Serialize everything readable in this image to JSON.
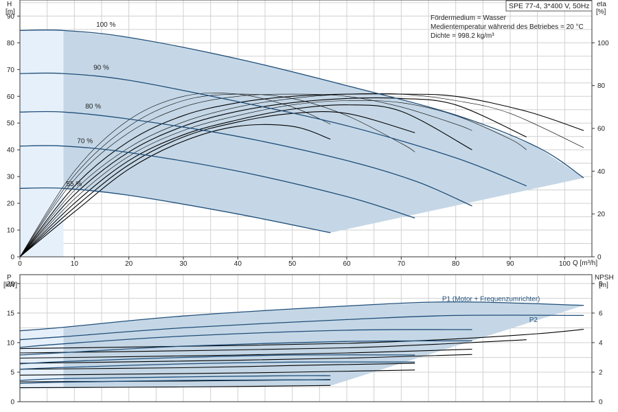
{
  "title_box": "SPE 77-4, 3*400 V, 50Hz",
  "info_lines": [
    "Fördermedium = Wasser",
    "Medientemperatur während des Betriebes = 20 °C",
    "Dichte = 998.2 kg/m³"
  ],
  "colors": {
    "curve": "#1f4e79",
    "fill": "#c5d7e6",
    "fill_light": "#e6f0fa",
    "eff": "#000000",
    "grid": "#d0d0d0"
  },
  "chart_data": [
    {
      "type": "line",
      "name": "head-efficiency",
      "ylabel_left": [
        "H",
        "[m]"
      ],
      "ylabel_right": [
        "eta",
        "[%]"
      ],
      "xlabel": "Q [m³/h]",
      "xlim": [
        0,
        105
      ],
      "ylim": [
        0,
        96
      ],
      "ylim_right": [
        0,
        120
      ],
      "xticks": [
        0,
        10,
        20,
        30,
        40,
        50,
        60,
        70,
        80,
        90,
        100
      ],
      "yticks_left": [
        0,
        10,
        20,
        30,
        40,
        50,
        60,
        70,
        80,
        90
      ],
      "yticks_right": [
        0,
        20,
        40,
        60,
        80,
        100
      ],
      "grid": true,
      "head_curves": [
        {
          "label": "100 %",
          "label_at": [
            14,
            86
          ],
          "points": [
            [
              0,
              84.6
            ],
            [
              8,
              84.6
            ],
            [
              20,
              82
            ],
            [
              40,
              74
            ],
            [
              60,
              64
            ],
            [
              80,
              53
            ],
            [
              95,
              41
            ],
            [
              103.5,
              29.5
            ]
          ]
        },
        {
          "label": "90 %",
          "label_at": [
            13.5,
            70
          ],
          "points": [
            [
              0,
              68.5
            ],
            [
              8,
              68.5
            ],
            [
              20,
              66
            ],
            [
              40,
              58
            ],
            [
              60,
              49
            ],
            [
              80,
              37
            ],
            [
              93,
              26.5
            ]
          ]
        },
        {
          "label": "80 %",
          "label_at": [
            12,
            55.5
          ],
          "points": [
            [
              0,
              54.1
            ],
            [
              8,
              54.1
            ],
            [
              20,
              51.5
            ],
            [
              40,
              45
            ],
            [
              60,
              36
            ],
            [
              73,
              28
            ],
            [
              83,
              19
            ]
          ]
        },
        {
          "label": "70 %",
          "label_at": [
            10.5,
            42.5
          ],
          "points": [
            [
              0,
              41.4
            ],
            [
              8,
              41.4
            ],
            [
              20,
              39
            ],
            [
              40,
              32
            ],
            [
              60,
              22.5
            ],
            [
              72.5,
              14.5
            ]
          ]
        },
        {
          "label": "55 %",
          "label_at": [
            8.5,
            26.5
          ],
          "points": [
            [
              0,
              25.6
            ],
            [
              8,
              25.6
            ],
            [
              20,
              23
            ],
            [
              40,
              16
            ],
            [
              57,
              9
            ]
          ]
        }
      ],
      "efficiency_curves_eta": [
        {
          "points": [
            [
              0,
              0
            ],
            [
              10,
              33
            ],
            [
              20,
              54
            ],
            [
              30,
              66
            ],
            [
              40,
              72
            ],
            [
              50,
              75
            ],
            [
              60,
              76
            ],
            [
              70,
              76
            ],
            [
              80,
              75
            ],
            [
              93,
              68
            ],
            [
              103.5,
              59
            ]
          ]
        },
        {
          "points": [
            [
              0,
              0
            ],
            [
              10,
              31
            ],
            [
              20,
              51
            ],
            [
              30,
              63
            ],
            [
              40,
              70
            ],
            [
              50,
              74
            ],
            [
              60,
              76
            ],
            [
              70,
              76
            ],
            [
              80,
              73
            ],
            [
              90,
              67
            ],
            [
              103.5,
              51
            ]
          ]
        },
        {
          "points": [
            [
              0,
              0
            ],
            [
              10,
              29
            ],
            [
              20,
              49
            ],
            [
              30,
              61
            ],
            [
              40,
              68
            ],
            [
              50,
              72
            ],
            [
              60,
              74
            ],
            [
              70,
              74
            ],
            [
              80,
              71
            ],
            [
              93,
              56
            ]
          ]
        },
        {
          "points": [
            [
              0,
              0
            ],
            [
              10,
              27
            ],
            [
              20,
              47
            ],
            [
              30,
              59
            ],
            [
              40,
              66
            ],
            [
              50,
              71
            ],
            [
              60,
              73
            ],
            [
              70,
              72
            ],
            [
              80,
              66
            ],
            [
              90,
              55
            ],
            [
              93,
              50
            ]
          ]
        },
        {
          "points": [
            [
              0,
              0
            ],
            [
              10,
              25
            ],
            [
              20,
              45
            ],
            [
              30,
              57
            ],
            [
              40,
              64
            ],
            [
              50,
              69
            ],
            [
              60,
              71
            ],
            [
              70,
              68
            ],
            [
              83,
              50
            ]
          ]
        },
        {
          "points": [
            [
              0,
              0
            ],
            [
              10,
              36
            ],
            [
              20,
              58
            ],
            [
              30,
              70
            ],
            [
              40,
              75
            ],
            [
              50,
              76
            ],
            [
              60,
              75
            ],
            [
              70,
              70
            ],
            [
              80,
              62
            ],
            [
              83,
              59
            ]
          ]
        },
        {
          "points": [
            [
              0,
              0
            ],
            [
              10,
              23
            ],
            [
              20,
              43
            ],
            [
              30,
              56
            ],
            [
              40,
              63
            ],
            [
              50,
              67
            ],
            [
              60,
              67
            ],
            [
              72.5,
              58
            ]
          ]
        },
        {
          "points": [
            [
              0,
              0
            ],
            [
              10,
              38
            ],
            [
              20,
              61
            ],
            [
              30,
              73
            ],
            [
              40,
              76
            ],
            [
              50,
              74
            ],
            [
              60,
              66
            ],
            [
              70,
              53
            ],
            [
              72.5,
              49
            ]
          ]
        },
        {
          "points": [
            [
              0,
              0
            ],
            [
              10,
              21
            ],
            [
              20,
              41
            ],
            [
              30,
              54
            ],
            [
              40,
              61
            ],
            [
              50,
              61
            ],
            [
              57,
              55
            ]
          ]
        },
        {
          "points": [
            [
              0,
              0
            ],
            [
              10,
              40
            ],
            [
              20,
              64
            ],
            [
              30,
              75
            ],
            [
              40,
              76
            ],
            [
              50,
              70
            ],
            [
              57,
              62
            ]
          ]
        }
      ]
    },
    {
      "type": "line",
      "name": "power-npsh",
      "ylabel_left": [
        "P",
        "[kW]"
      ],
      "ylabel_right": [
        "NPSH",
        "[m]"
      ],
      "xlim": [
        0,
        105
      ],
      "ylim": [
        0,
        21.5
      ],
      "ylim_right": [
        0,
        8.6
      ],
      "yticks_left": [
        0,
        5,
        10,
        15,
        20
      ],
      "yticks_right": [
        0,
        2,
        4,
        6,
        8
      ],
      "grid": true,
      "annotations": [
        {
          "text": "P1 (Motor + Frequenzumrichter)",
          "at": [
            77.5,
            17
          ]
        },
        {
          "text": "P2",
          "at": [
            93.5,
            13.5
          ]
        }
      ],
      "p1_curves": [
        {
          "points": [
            [
              0,
              12
            ],
            [
              8,
              12.6
            ],
            [
              30,
              14.5
            ],
            [
              60,
              16.2
            ],
            [
              80,
              16.9
            ],
            [
              103.5,
              16.3
            ]
          ]
        },
        {
          "points": [
            [
              0,
              9.2
            ],
            [
              8,
              9.8
            ],
            [
              30,
              11.1
            ],
            [
              60,
              12.1
            ],
            [
              83,
              12.2
            ]
          ]
        },
        {
          "points": [
            [
              0,
              6.4
            ],
            [
              8,
              6.8
            ],
            [
              30,
              7.5
            ],
            [
              50,
              7.9
            ],
            [
              72.5,
              7.9
            ]
          ]
        },
        {
          "points": [
            [
              0,
              3.6
            ],
            [
              8,
              3.9
            ],
            [
              30,
              4.2
            ],
            [
              50,
              4.4
            ],
            [
              57,
              4.4
            ]
          ]
        }
      ],
      "p2_curves": [
        {
          "points": [
            [
              0,
              10.5
            ],
            [
              8,
              11
            ],
            [
              30,
              12.5
            ],
            [
              60,
              13.9
            ],
            [
              80,
              14.6
            ],
            [
              103.5,
              14.6
            ]
          ]
        },
        {
          "points": [
            [
              0,
              7.9
            ],
            [
              8,
              8.3
            ],
            [
              30,
              9.4
            ],
            [
              60,
              10.2
            ],
            [
              83,
              10.3
            ]
          ]
        },
        {
          "points": [
            [
              0,
              5.5
            ],
            [
              8,
              5.8
            ],
            [
              30,
              6.4
            ],
            [
              50,
              6.7
            ],
            [
              72.5,
              6.7
            ]
          ]
        },
        {
          "points": [
            [
              0,
              3.1
            ],
            [
              8,
              3.3
            ],
            [
              30,
              3.6
            ],
            [
              50,
              3.7
            ],
            [
              57,
              3.7
            ]
          ]
        }
      ],
      "npsh_curves": [
        {
          "points": [
            [
              0,
              3.6
            ],
            [
              30,
              3.75
            ],
            [
              60,
              3.95
            ],
            [
              80,
              4.25
            ],
            [
              95,
              4.6
            ],
            [
              103.5,
              4.9
            ]
          ]
        },
        {
          "points": [
            [
              0,
              3.3
            ],
            [
              30,
              3.45
            ],
            [
              60,
              3.65
            ],
            [
              80,
              3.95
            ],
            [
              93,
              4.2
            ]
          ]
        },
        {
          "points": [
            [
              0,
              2.95
            ],
            [
              30,
              3.1
            ],
            [
              60,
              3.3
            ],
            [
              83,
              3.55
            ]
          ]
        },
        {
          "points": [
            [
              0,
              2.6
            ],
            [
              30,
              2.75
            ],
            [
              60,
              2.95
            ],
            [
              83,
              3.2
            ]
          ]
        },
        {
          "points": [
            [
              0,
              2.2
            ],
            [
              30,
              2.3
            ],
            [
              50,
              2.45
            ],
            [
              72.5,
              2.6
            ]
          ]
        },
        {
          "points": [
            [
              0,
              1.8
            ],
            [
              30,
              1.9
            ],
            [
              50,
              2.0
            ],
            [
              72.5,
              2.15
            ]
          ]
        },
        {
          "points": [
            [
              0,
              1.35
            ],
            [
              30,
              1.4
            ],
            [
              57,
              1.5
            ]
          ]
        },
        {
          "points": [
            [
              0,
              0.95
            ],
            [
              30,
              1.0
            ],
            [
              57,
              1.1
            ]
          ]
        }
      ]
    }
  ]
}
